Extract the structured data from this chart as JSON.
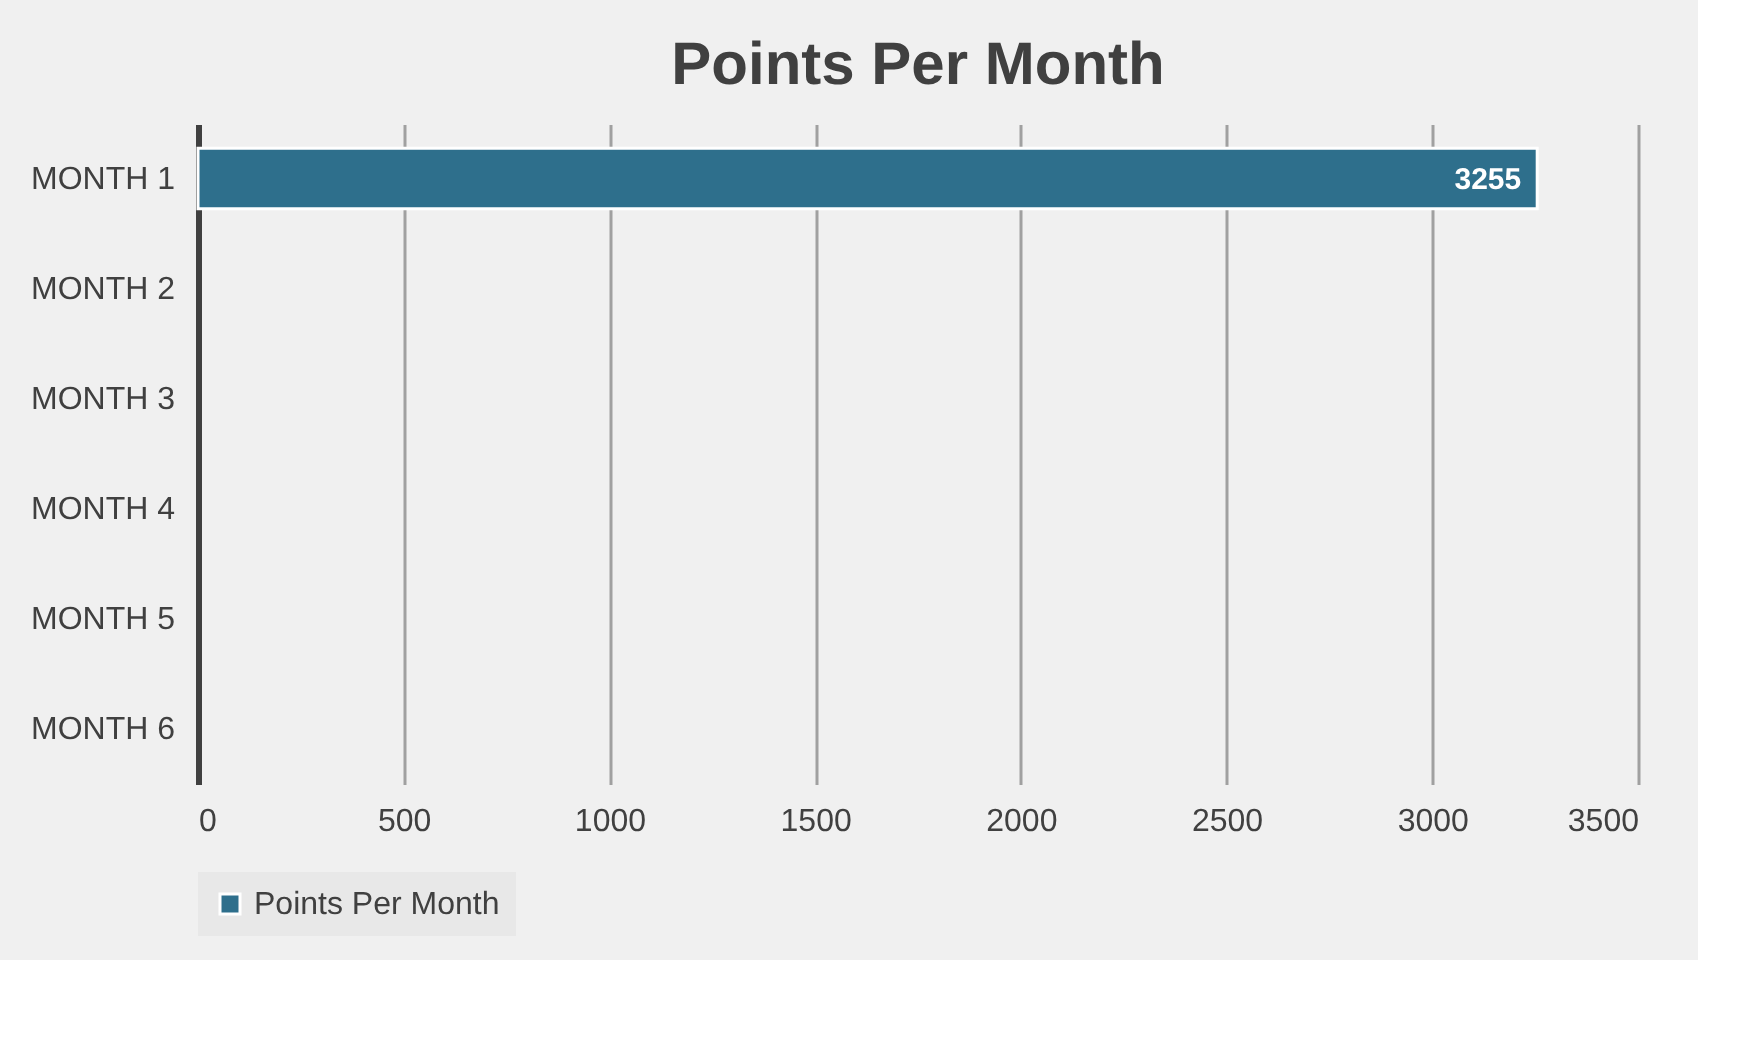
{
  "chart_data": {
    "type": "bar",
    "orientation": "horizontal",
    "title": "Points Per Month",
    "categories": [
      "MONTH 1",
      "MONTH 2",
      "MONTH 3",
      "MONTH 4",
      "MONTH 5",
      "MONTH 6"
    ],
    "series": [
      {
        "name": "Points Per Month",
        "color": "#2e6f8c",
        "values": [
          3255,
          null,
          null,
          null,
          null,
          null
        ]
      }
    ],
    "xlim": [
      0,
      3500
    ],
    "xticks": [
      0,
      500,
      1000,
      1500,
      2000,
      2500,
      3000,
      3500
    ],
    "grid": "x",
    "legend": "bottom",
    "data_labels": true
  }
}
